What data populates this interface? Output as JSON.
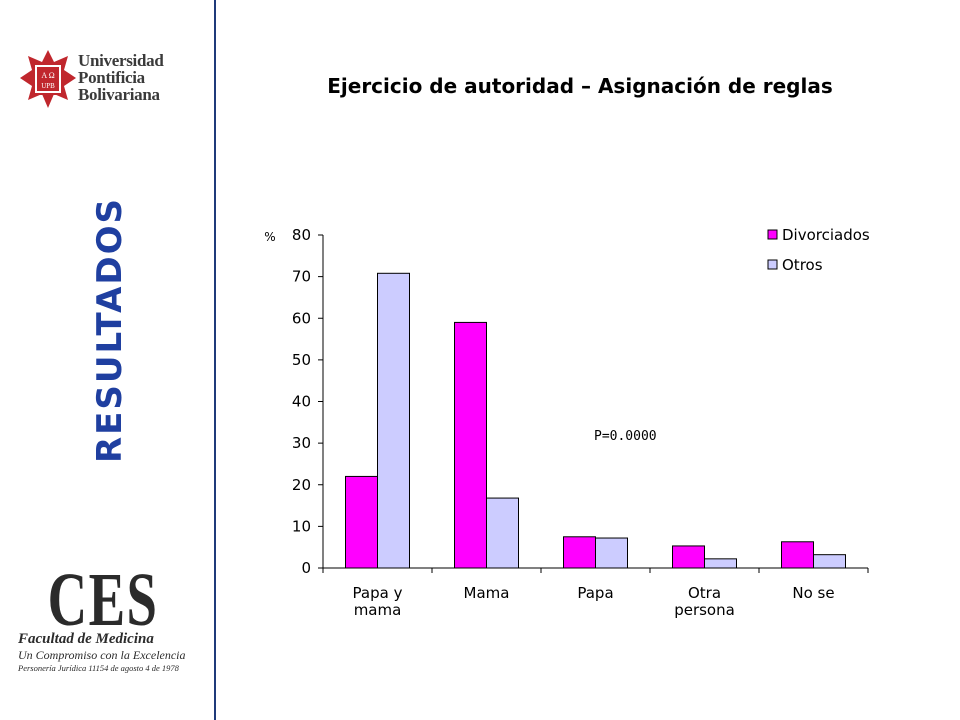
{
  "colors": {
    "divider": "#1f3a7a",
    "side_title": "#1f3fa0",
    "series_1": "#ff00ff",
    "series_2": "#ccccff"
  },
  "logos": {
    "upb": {
      "line1": "Universidad",
      "line2": "Pontificia",
      "line3": "Bolivariana",
      "badge": "A Ω UPB"
    },
    "ces": {
      "mark": "CES",
      "line1": "Facultad de Medicina",
      "line2": "Un Compromiso con la Excelencia",
      "line3": "Personería Jurídica 11154 de agosto 4 de 1978"
    }
  },
  "side_title": "RESULTADOS",
  "chart_data": {
    "type": "bar",
    "title": "Ejercicio de autoridad – Asignación de reglas",
    "ylabel": "%",
    "ylim": [
      0,
      80
    ],
    "yticks": [
      0,
      10,
      20,
      30,
      40,
      50,
      60,
      70,
      80
    ],
    "grid": false,
    "legend_position": "top-right",
    "categories": [
      [
        "Papa y",
        "mama"
      ],
      [
        "Mama"
      ],
      [
        "Papa"
      ],
      [
        "Otra",
        "persona"
      ],
      [
        "No se"
      ]
    ],
    "series": [
      {
        "name": "Divorciados",
        "color": "#ff00ff",
        "values": [
          22,
          59,
          7.5,
          5.3,
          6.3
        ]
      },
      {
        "name": "Otros",
        "color": "#ccccff",
        "values": [
          70.8,
          16.8,
          7.2,
          2.2,
          3.2
        ]
      }
    ],
    "annotation": "P=0.0000"
  }
}
